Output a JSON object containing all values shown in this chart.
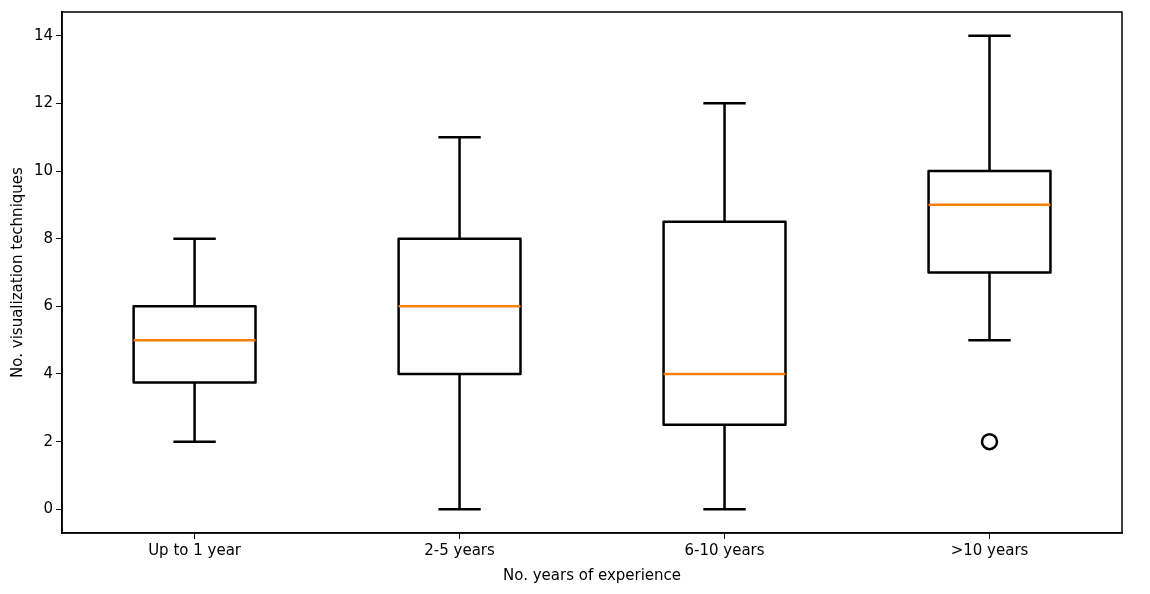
{
  "chart_data": {
    "type": "box",
    "xlabel": "No. years of experience",
    "ylabel": "No. visualization techniques",
    "categories": [
      "Up to 1 year",
      "2-5 years",
      "6-10 years",
      ">10 years"
    ],
    "ylim": [
      -0.7,
      14.7
    ],
    "yticks": [
      0,
      2,
      4,
      6,
      8,
      10,
      12,
      14
    ],
    "grid": false,
    "legend": false,
    "series": [
      {
        "color": "#000000",
        "boxes": [
          {
            "low": 2,
            "q1": 3.75,
            "median": 5,
            "q3": 6,
            "high": 8
          },
          {
            "low": 0,
            "q1": 4,
            "median": 6,
            "q3": 8,
            "high": 11
          },
          {
            "low": 0,
            "q1": 2.5,
            "median": 4,
            "q3": 8.5,
            "high": 12
          },
          {
            "low": 5,
            "q1": 7,
            "median": 9,
            "q3": 10,
            "high": 14,
            "outliers": [
              2
            ]
          }
        ]
      }
    ]
  }
}
